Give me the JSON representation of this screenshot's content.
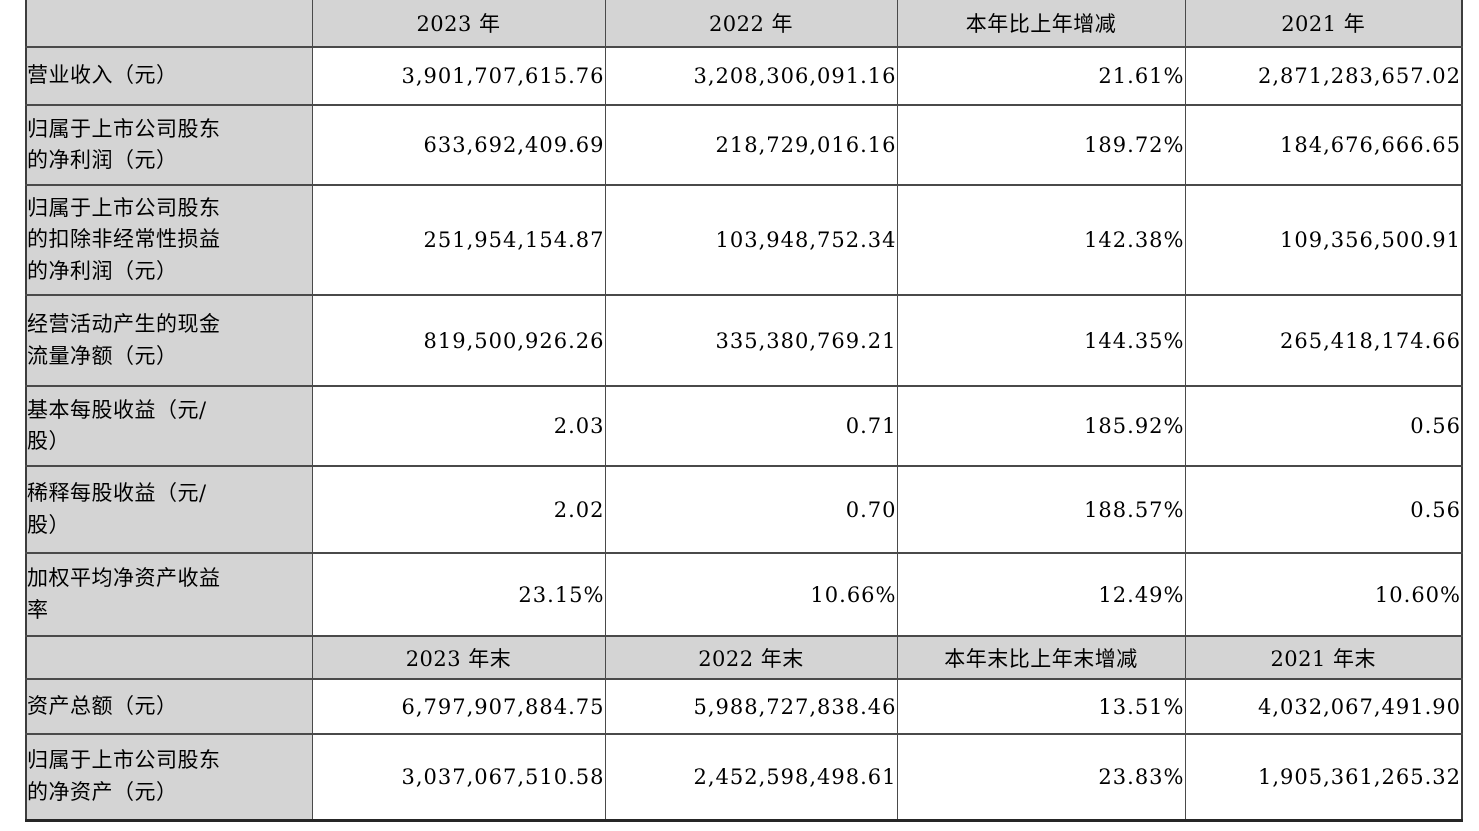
{
  "colors": {
    "header_bg": "#d4d4d4",
    "label_bg": "#d4d4d4",
    "data_bg": "#ffffff",
    "border": "#4a4a4a",
    "text": "#000000"
  },
  "table": {
    "annual_header": [
      "",
      "2023 年",
      "2022 年",
      "本年比上年增减",
      "2021 年"
    ],
    "annual_rows": [
      {
        "label": "营业收入（元）",
        "values": [
          "3,901,707,615.76",
          "3,208,306,091.16",
          "21.61%",
          "2,871,283,657.02"
        ]
      },
      {
        "label": "归属于上市公司股东\n的净利润（元）",
        "values": [
          "633,692,409.69",
          "218,729,016.16",
          "189.72%",
          "184,676,666.65"
        ]
      },
      {
        "label": "归属于上市公司股东\n的扣除非经常性损益\n的净利润（元）",
        "values": [
          "251,954,154.87",
          "103,948,752.34",
          "142.38%",
          "109,356,500.91"
        ]
      },
      {
        "label": "经营活动产生的现金\n流量净额（元）",
        "values": [
          "819,500,926.26",
          "335,380,769.21",
          "144.35%",
          "265,418,174.66"
        ]
      },
      {
        "label": "基本每股收益（元/\n股）",
        "values": [
          "2.03",
          "0.71",
          "185.92%",
          "0.56"
        ]
      },
      {
        "label": "稀释每股收益（元/\n股）",
        "values": [
          "2.02",
          "0.70",
          "188.57%",
          "0.56"
        ]
      },
      {
        "label": "加权平均净资产收益\n率",
        "values": [
          "23.15%",
          "10.66%",
          "12.49%",
          "10.60%"
        ]
      }
    ],
    "eoy_header": [
      "",
      "2023 年末",
      "2022 年末",
      "本年末比上年末增减",
      "2021 年末"
    ],
    "eoy_rows": [
      {
        "label": "资产总额（元）",
        "values": [
          "6,797,907,884.75",
          "5,988,727,838.46",
          "13.51%",
          "4,032,067,491.90"
        ]
      },
      {
        "label": "归属于上市公司股东\n的净资产（元）",
        "values": [
          "3,037,067,510.58",
          "2,452,598,498.61",
          "23.83%",
          "1,905,361,265.32"
        ]
      }
    ]
  }
}
